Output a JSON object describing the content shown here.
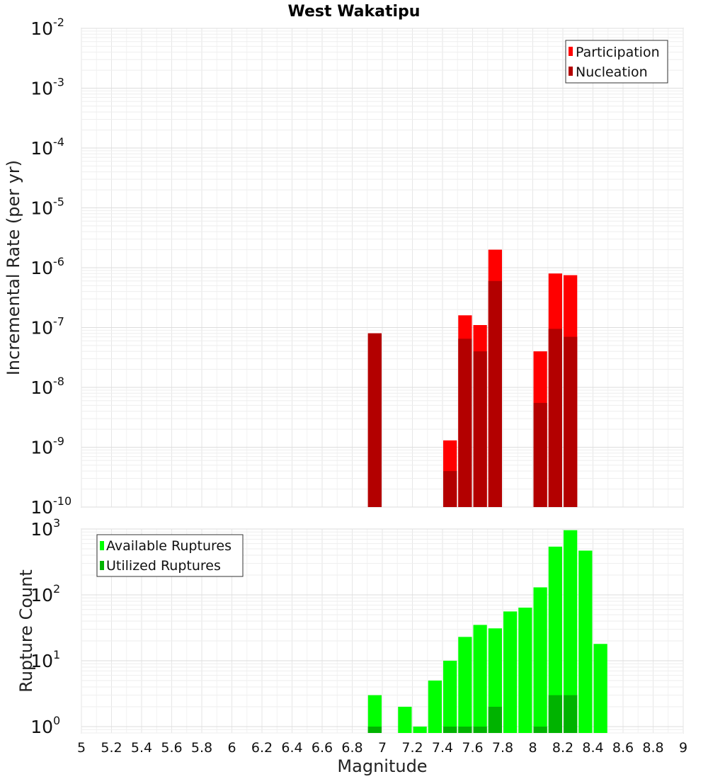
{
  "chart_data": [
    {
      "type": "bar",
      "title": "West Wakatipu",
      "ylabel": "Incremental Rate (per yr)",
      "xlabel": "",
      "xlim": [
        5,
        9
      ],
      "ylim": [
        1e-10,
        0.01
      ],
      "yscale": "log",
      "bar_width": 0.1,
      "grid": true,
      "legend_position": "top-right",
      "x": [
        6.95,
        7.45,
        7.55,
        7.65,
        7.75,
        8.05,
        8.15,
        8.25
      ],
      "series": [
        {
          "name": "Participation",
          "color": "#ff0000",
          "values": [
            8e-08,
            1.3e-09,
            1.6e-07,
            1.1e-07,
            2e-06,
            4e-08,
            8e-07,
            7.5e-07
          ]
        },
        {
          "name": "Nucleation",
          "color": "#b30000",
          "values": [
            8e-08,
            4e-10,
            6.5e-08,
            4e-08,
            6e-07,
            5.5e-09,
            9.5e-08,
            7e-08
          ]
        }
      ],
      "yticks": [
        {
          "base": "10",
          "exp": "-2"
        },
        {
          "base": "10",
          "exp": "-3"
        },
        {
          "base": "10",
          "exp": "-4"
        },
        {
          "base": "10",
          "exp": "-5"
        },
        {
          "base": "10",
          "exp": "-6"
        },
        {
          "base": "10",
          "exp": "-7"
        },
        {
          "base": "10",
          "exp": "-8"
        },
        {
          "base": "10",
          "exp": "-9"
        },
        {
          "base": "10",
          "exp": "-10"
        }
      ]
    },
    {
      "type": "bar",
      "title": "",
      "ylabel": "Rupture Count",
      "xlabel": "Magnitude",
      "xlim": [
        5,
        9
      ],
      "ylim": [
        0.8,
        1000
      ],
      "yscale": "log",
      "bar_width": 0.1,
      "grid": true,
      "legend_position": "top-left",
      "x": [
        6.95,
        7.15,
        7.25,
        7.35,
        7.45,
        7.55,
        7.65,
        7.75,
        7.85,
        7.95,
        8.05,
        8.15,
        8.25,
        8.35,
        8.45
      ],
      "series": [
        {
          "name": "Available Ruptures",
          "color": "#00ff00",
          "values": [
            3,
            2,
            1,
            5,
            10,
            23,
            35,
            31,
            56,
            64,
            130,
            540,
            960,
            470,
            18
          ]
        },
        {
          "name": "Utilized Ruptures",
          "color": "#00b300",
          "values": [
            1,
            0,
            0,
            0,
            1,
            1,
            1,
            2,
            0,
            0,
            1,
            3,
            3,
            0,
            0
          ]
        }
      ],
      "yticks": [
        {
          "base": "10",
          "exp": "3"
        },
        {
          "base": "10",
          "exp": "2"
        },
        {
          "base": "10",
          "exp": "1"
        },
        {
          "base": "10",
          "exp": "0"
        }
      ],
      "xticks": [
        "5",
        "5.2",
        "5.4",
        "5.6",
        "5.8",
        "6",
        "6.2",
        "6.4",
        "6.6",
        "6.8",
        "7",
        "7.2",
        "7.4",
        "7.6",
        "7.8",
        "8",
        "8.2",
        "8.4",
        "8.6",
        "8.8",
        "9"
      ]
    }
  ]
}
